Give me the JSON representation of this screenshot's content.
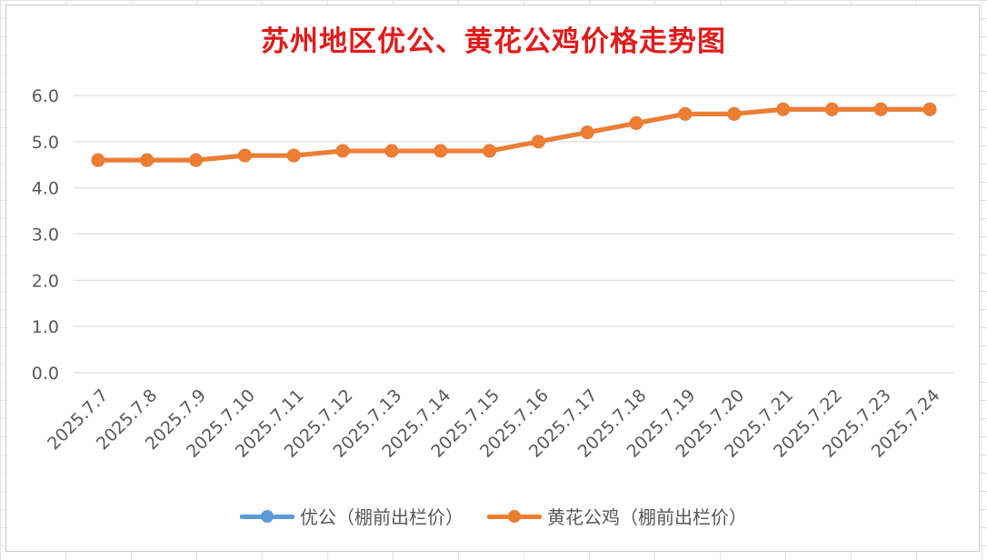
{
  "chart_data": {
    "type": "line",
    "title": "苏州地区优公、黄花公鸡价格走势图",
    "xlabel": "",
    "ylabel": "",
    "ylim": [
      0,
      6
    ],
    "yticks": [
      "0.0",
      "1.0",
      "2.0",
      "3.0",
      "4.0",
      "5.0",
      "6.0"
    ],
    "grid": true,
    "legend_position": "bottom",
    "categories": [
      "2025.7.7",
      "2025.7.8",
      "2025.7.9",
      "2025.7.10",
      "2025.7.11",
      "2025.7.12",
      "2025.7.13",
      "2025.7.14",
      "2025.7.15",
      "2025.7.16",
      "2025.7.17",
      "2025.7.18",
      "2025.7.19",
      "2025.7.20",
      "2025.7.21",
      "2025.7.22",
      "2025.7.23",
      "2025.7.24"
    ],
    "series": [
      {
        "name": "优公（棚前出栏价）",
        "color": "#5b9bd5",
        "values": [
          4.6,
          4.6,
          4.6,
          4.7,
          4.7,
          4.8,
          4.8,
          4.8,
          4.8,
          5.0,
          5.2,
          5.4,
          5.6,
          5.6,
          5.7,
          5.7,
          5.7,
          5.7
        ]
      },
      {
        "name": "黄花公鸡（棚前出栏价）",
        "color": "#ed7d31",
        "values": [
          4.6,
          4.6,
          4.6,
          4.7,
          4.7,
          4.8,
          4.8,
          4.8,
          4.8,
          5.0,
          5.2,
          5.4,
          5.6,
          5.6,
          5.7,
          5.7,
          5.7,
          5.7
        ]
      }
    ]
  }
}
